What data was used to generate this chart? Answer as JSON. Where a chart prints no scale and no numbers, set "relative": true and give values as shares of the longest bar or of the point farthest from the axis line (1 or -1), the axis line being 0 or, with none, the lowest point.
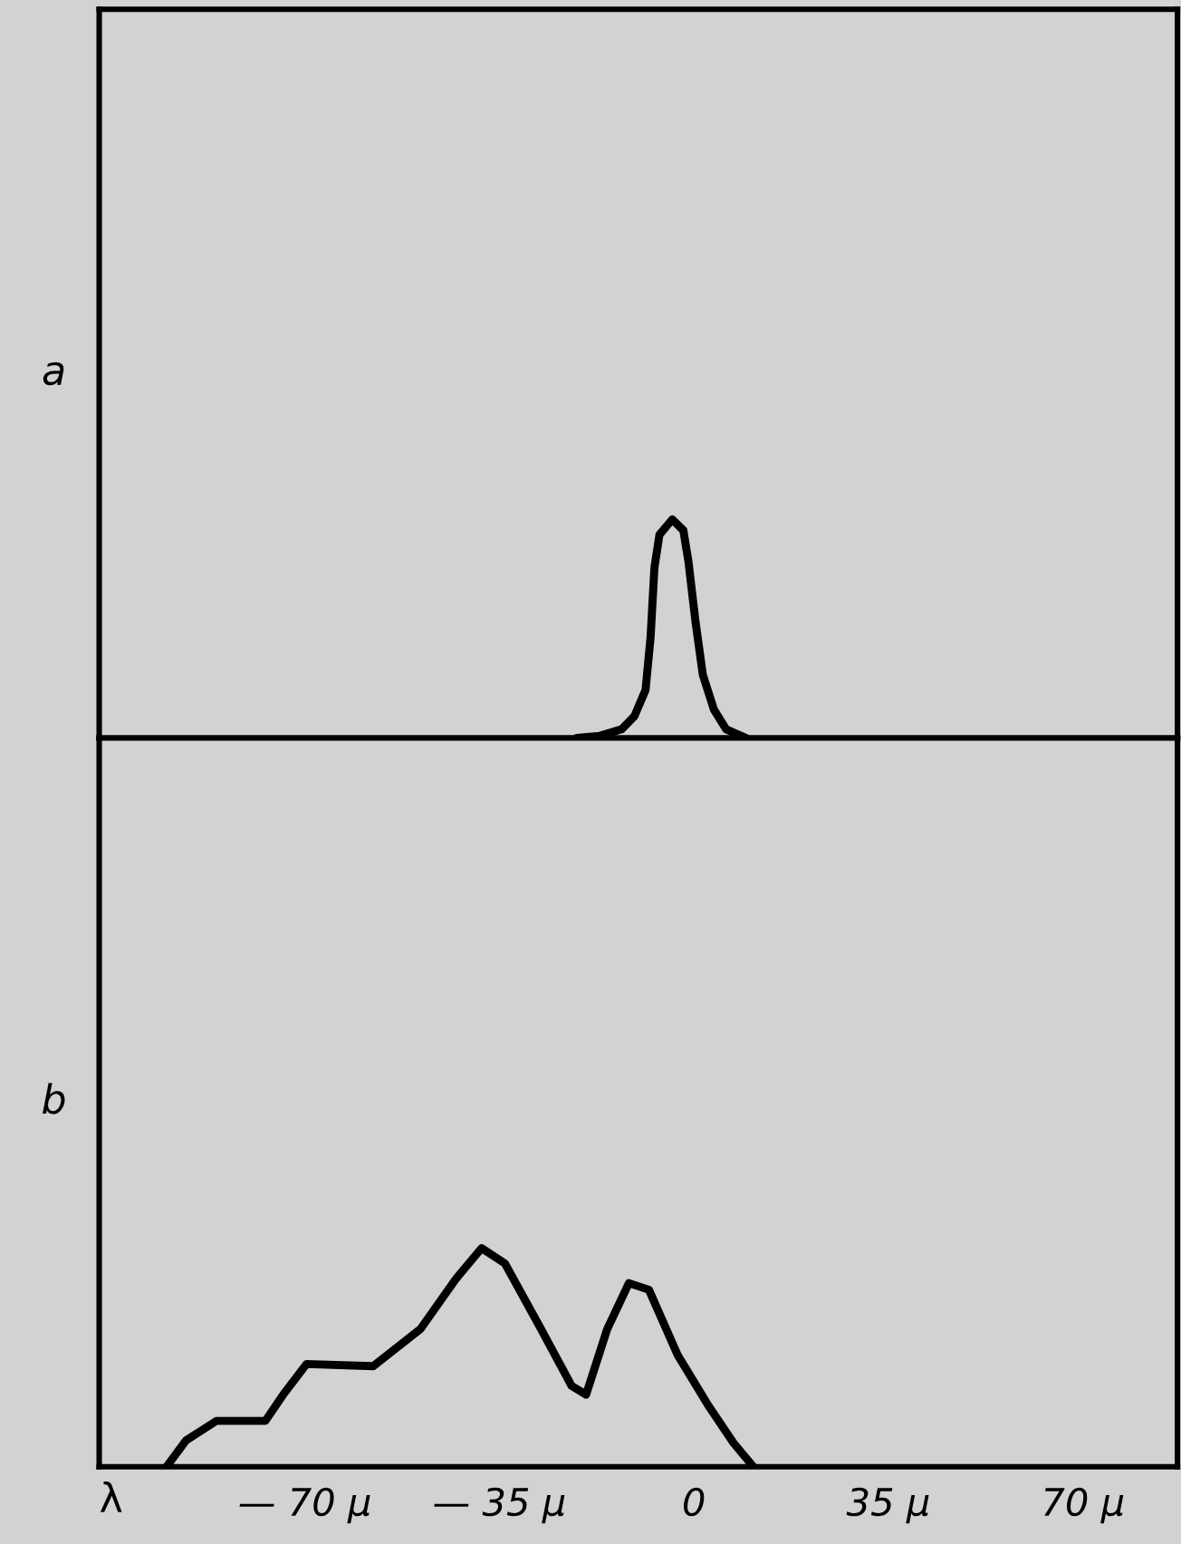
{
  "chart_data": [
    {
      "type": "line",
      "ylabel": "a",
      "relative": true,
      "xlim": [
        -107,
        87
      ],
      "tick_labels": false,
      "color": "#000000",
      "x": [
        -21.1,
        -16.9,
        -13.0,
        -10.7,
        -8.7,
        -7.8,
        -7.1,
        -6.2,
        -3.9,
        -1.9,
        -1.0,
        0.3,
        1.6,
        3.6,
        5.8,
        9.4
      ],
      "values": [
        0,
        0.01,
        0.04,
        0.1,
        0.22,
        0.46,
        0.78,
        0.93,
        1.0,
        0.95,
        0.81,
        0.53,
        0.29,
        0.13,
        0.04,
        0
      ]
    },
    {
      "type": "line",
      "ylabel": "b",
      "xlabel": "λ",
      "relative": true,
      "xlim": [
        -107,
        87
      ],
      "tick_labels": "x",
      "color": "#000000",
      "xticks": [
        {
          "value": -70,
          "label": "— 70 μ"
        },
        {
          "value": -35,
          "label": "— 35 μ"
        },
        {
          "value": 0,
          "label": "0"
        },
        {
          "value": 35,
          "label": "35 μ"
        },
        {
          "value": 70,
          "label": "70 μ"
        }
      ],
      "x": [
        -94.9,
        -91.4,
        -85.9,
        -77.1,
        -73.9,
        -69.7,
        -57.7,
        -49.2,
        -42.8,
        -38.2,
        -34.0,
        -27.5,
        -22.0,
        -19.4,
        -15.6,
        -11.7,
        -8.1,
        -2.9,
        2.6,
        7.1,
        10.7
      ],
      "values": [
        0,
        0.12,
        0.21,
        0.21,
        0.33,
        0.47,
        0.46,
        0.63,
        0.86,
        1.0,
        0.93,
        0.63,
        0.37,
        0.33,
        0.63,
        0.84,
        0.81,
        0.51,
        0.28,
        0.11,
        0
      ]
    }
  ]
}
